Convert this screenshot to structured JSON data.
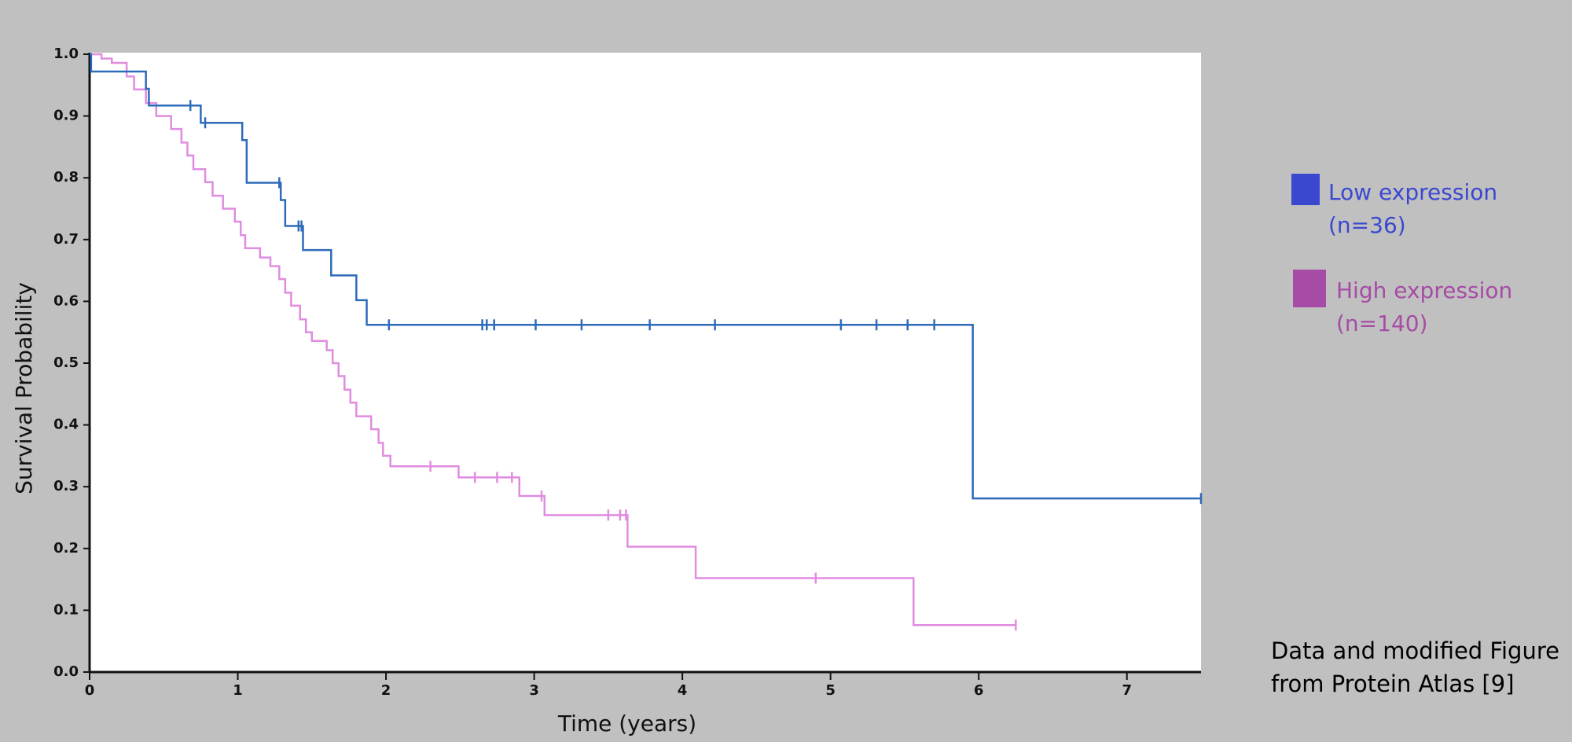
{
  "chart_data": {
    "type": "kaplan-meier",
    "x_label": "Time (years)",
    "y_label": "Survival Probability",
    "xlim": [
      0,
      7.5
    ],
    "ylim": [
      0,
      1.0
    ],
    "xticks": [
      0,
      1,
      2,
      3,
      4,
      5,
      6,
      7
    ],
    "yticks": [
      {
        "value": 0,
        "label": "0.0"
      },
      0.1,
      0.2,
      0.3,
      0.4,
      0.5,
      0.6,
      0.7,
      0.8,
      0.9,
      {
        "value": 1,
        "label": "1.0"
      }
    ],
    "series": [
      {
        "name": "Low expression",
        "count_label": "(n=36)",
        "color": "#2e6bb8",
        "legend_color": "#3a48d0",
        "x": [
          0,
          0.01,
          0.38,
          0.4,
          0.75,
          1.03,
          1.06,
          1.29,
          1.32,
          1.44,
          1.63,
          1.8,
          1.87,
          5.96,
          7.5
        ],
        "values": [
          1.0,
          0.972,
          0.944,
          0.917,
          0.889,
          0.861,
          0.792,
          0.764,
          0.722,
          0.683,
          0.642,
          0.602,
          0.562,
          0.281,
          0.281
        ],
        "censor_x": [
          0.68,
          0.78,
          1.28,
          1.41,
          1.43,
          2.02,
          2.65,
          2.68,
          2.73,
          3.01,
          3.32,
          3.78,
          4.22,
          5.07,
          5.31,
          5.52,
          5.7,
          7.5
        ],
        "censor_values": [
          0.917,
          0.889,
          0.792,
          0.722,
          0.722,
          0.562,
          0.562,
          0.562,
          0.562,
          0.562,
          0.562,
          0.562,
          0.562,
          0.562,
          0.562,
          0.562,
          0.562,
          0.281
        ]
      },
      {
        "name": "High expression",
        "count_label": "(n=140)",
        "color": "#e08ce0",
        "legend_color": "#a64ca6",
        "x": [
          0,
          0.08,
          0.15,
          0.25,
          0.3,
          0.38,
          0.45,
          0.55,
          0.62,
          0.66,
          0.7,
          0.78,
          0.83,
          0.9,
          0.98,
          1.02,
          1.05,
          1.15,
          1.22,
          1.28,
          1.32,
          1.36,
          1.42,
          1.46,
          1.5,
          1.6,
          1.64,
          1.68,
          1.72,
          1.76,
          1.8,
          1.9,
          1.95,
          1.98,
          2.03,
          2.49,
          2.9,
          3.07,
          3.63,
          4.09,
          5.56,
          6.25
        ],
        "values": [
          1.0,
          0.993,
          0.986,
          0.964,
          0.943,
          0.921,
          0.9,
          0.879,
          0.857,
          0.836,
          0.814,
          0.793,
          0.771,
          0.75,
          0.729,
          0.707,
          0.686,
          0.671,
          0.657,
          0.636,
          0.614,
          0.593,
          0.571,
          0.55,
          0.536,
          0.521,
          0.5,
          0.479,
          0.457,
          0.436,
          0.414,
          0.393,
          0.371,
          0.35,
          0.333,
          0.315,
          0.285,
          0.254,
          0.203,
          0.152,
          0.076,
          0.076
        ],
        "censor_x": [
          2.3,
          2.6,
          2.75,
          2.85,
          3.05,
          3.5,
          3.58,
          3.62,
          4.9,
          6.25
        ],
        "censor_values": [
          0.333,
          0.315,
          0.315,
          0.315,
          0.285,
          0.254,
          0.254,
          0.254,
          0.152,
          0.076
        ]
      }
    ],
    "note": [
      "Data and modified Figure",
      "from Protein Atlas [9]"
    ]
  }
}
